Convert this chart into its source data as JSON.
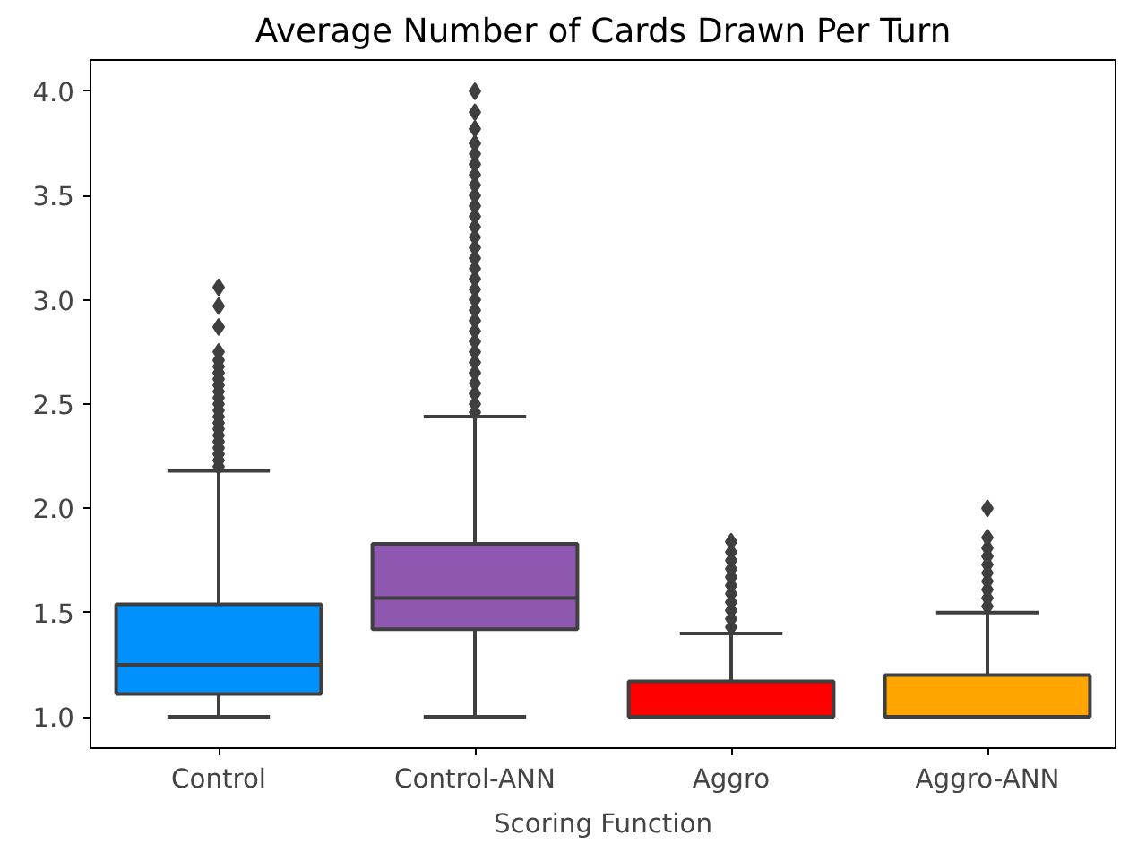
{
  "chart_data": {
    "type": "box",
    "title": "Average Number of Cards Drawn Per Turn",
    "xlabel": "Scoring Function",
    "categories": [
      "Control",
      "Control-ANN",
      "Aggro",
      "Aggro-ANN"
    ],
    "colors": [
      "#0091ff",
      "#8e57b0",
      "#ff0000",
      "#ffa500"
    ],
    "boxes": [
      {
        "low": 1.0,
        "q1": 1.11,
        "median": 1.25,
        "q3": 1.54,
        "high": 2.18,
        "outliers": [
          2.2,
          2.23,
          2.26,
          2.29,
          2.32,
          2.35,
          2.38,
          2.41,
          2.44,
          2.47,
          2.5,
          2.53,
          2.56,
          2.59,
          2.62,
          2.65,
          2.68,
          2.71,
          2.75,
          2.87,
          2.97,
          3.06
        ]
      },
      {
        "low": 1.0,
        "q1": 1.42,
        "median": 1.57,
        "q3": 1.83,
        "high": 2.44,
        "outliers": [
          2.46,
          2.5,
          2.55,
          2.6,
          2.65,
          2.7,
          2.75,
          2.8,
          2.85,
          2.9,
          2.95,
          3.0,
          3.05,
          3.1,
          3.15,
          3.2,
          3.25,
          3.3,
          3.35,
          3.4,
          3.45,
          3.5,
          3.55,
          3.6,
          3.65,
          3.7,
          3.75,
          3.82,
          3.9,
          4.0
        ]
      },
      {
        "low": 1.0,
        "q1": 1.0,
        "median": 1.0,
        "q3": 1.17,
        "high": 1.4,
        "outliers": [
          1.43,
          1.47,
          1.51,
          1.55,
          1.59,
          1.63,
          1.67,
          1.71,
          1.75,
          1.79,
          1.84
        ]
      },
      {
        "low": 1.0,
        "q1": 1.0,
        "median": 1.0,
        "q3": 1.2,
        "high": 1.5,
        "outliers": [
          1.53,
          1.57,
          1.61,
          1.65,
          1.69,
          1.73,
          1.77,
          1.81,
          1.86,
          2.0
        ]
      }
    ],
    "ylim": [
      0.85,
      4.15
    ],
    "yticks": [
      {
        "value": 1,
        "label": "1.0"
      },
      1.5,
      {
        "value": 2,
        "label": "2.0"
      },
      2.5,
      {
        "value": 3,
        "label": "3.0"
      },
      3.5,
      {
        "value": 4,
        "label": "4.0"
      }
    ],
    "grid": false,
    "marker": "diamond"
  }
}
